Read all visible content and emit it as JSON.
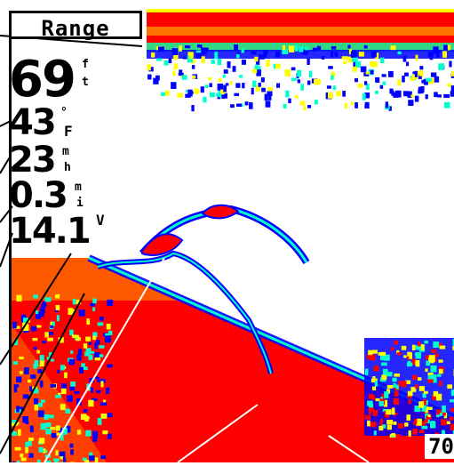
{
  "range_button": {
    "label": "Range"
  },
  "readouts": {
    "depth": {
      "value": "69",
      "unit_top": "f",
      "unit_bottom": "t"
    },
    "water_temp": {
      "value": "43",
      "unit_top": "°",
      "unit_bottom": "F"
    },
    "speed": {
      "value": "23",
      "unit_top": "m",
      "unit_bottom": "h"
    },
    "distance": {
      "value": "0.3",
      "unit_top": "m",
      "unit_bottom": "i"
    },
    "voltage": {
      "value": "14.1",
      "unit_top": "V",
      "unit_bottom": ""
    }
  },
  "depth_scale": {
    "bottom_label": "70"
  },
  "colors": {
    "strong_return": "#ff0000",
    "medium_return": "#ffff00",
    "weak_return": "#0000ff",
    "transition": "#00ffcc",
    "background": "#ffffff"
  }
}
